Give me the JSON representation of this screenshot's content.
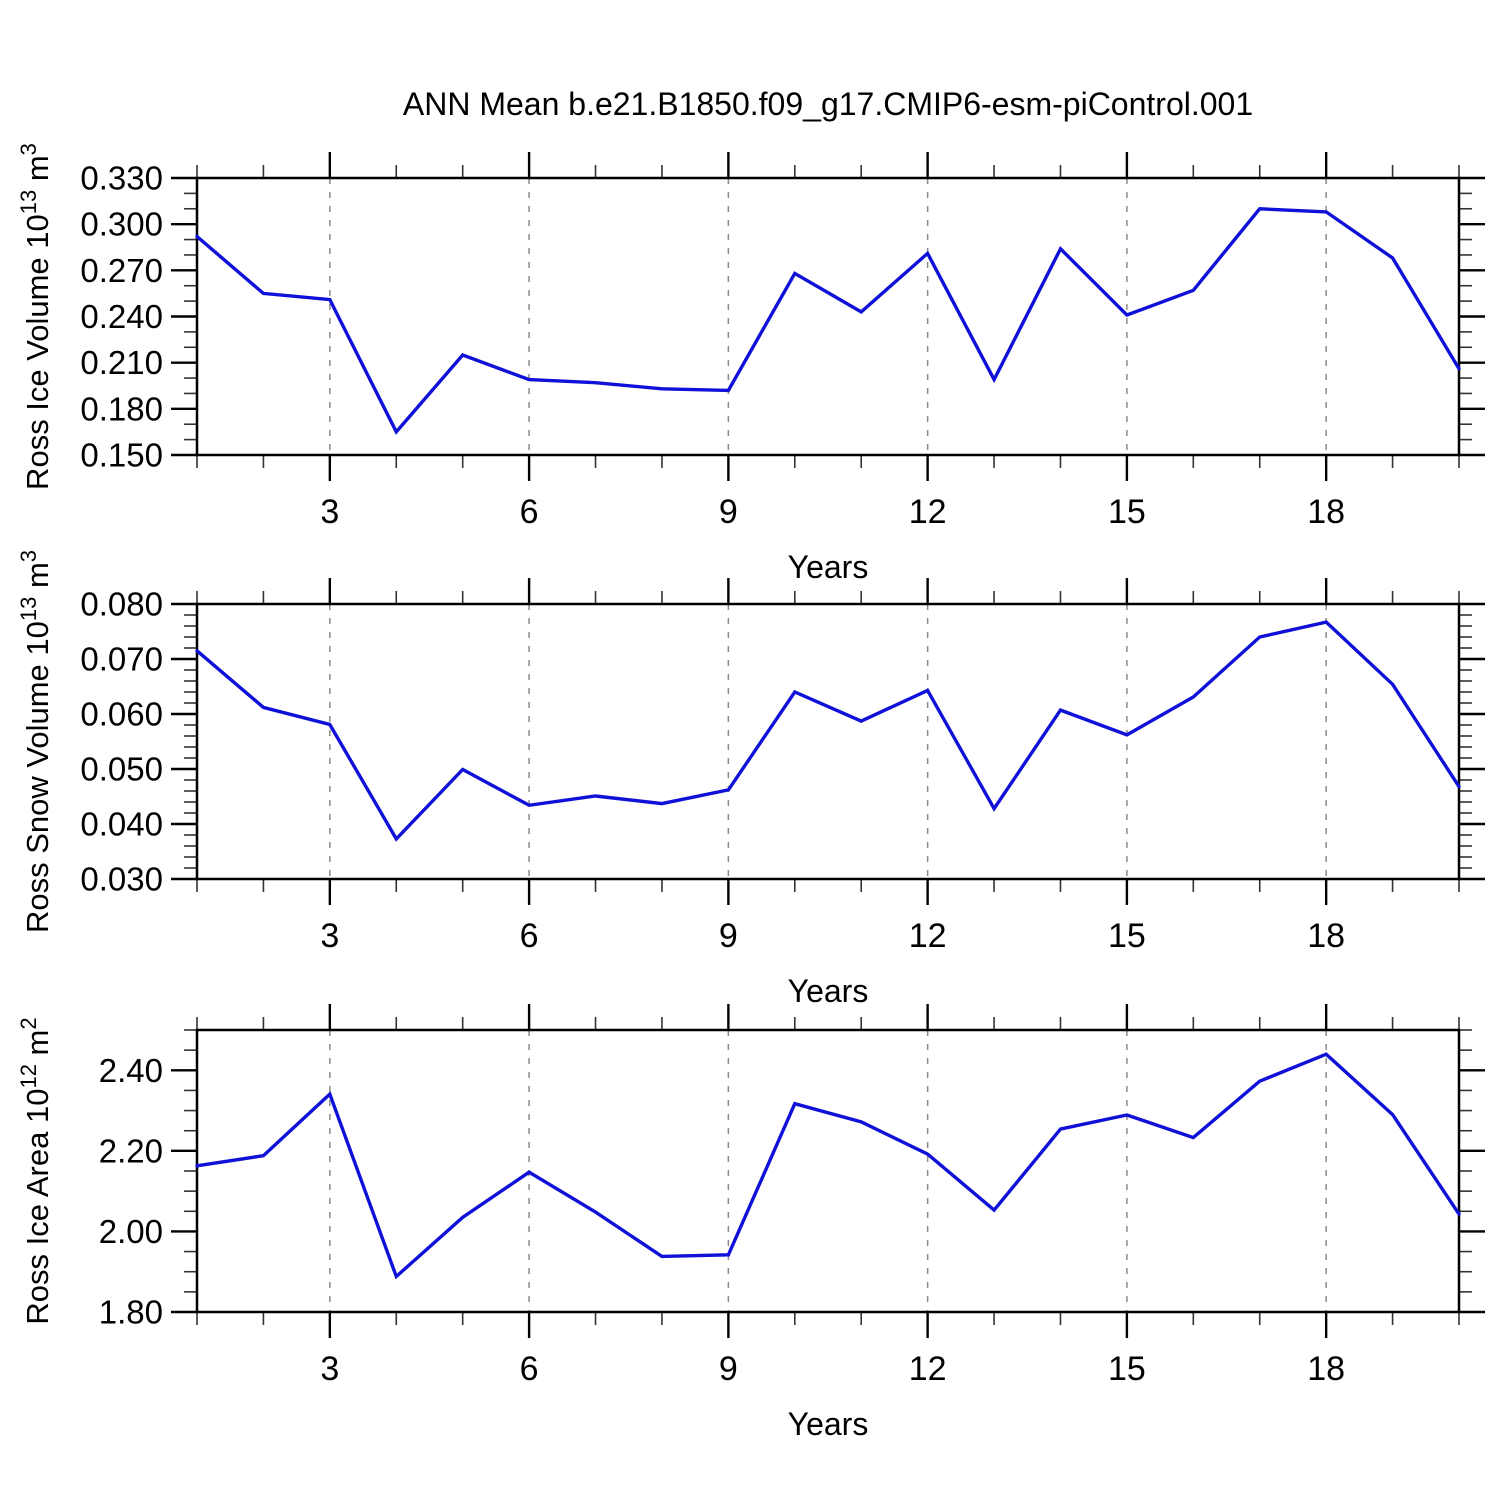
{
  "title": "ANN Mean b.e21.B1850.f09_g17.CMIP6-esm-piControl.001",
  "xlabel": "Years",
  "x_major_tick_labels": [
    "3",
    "6",
    "9",
    "12",
    "15",
    "18"
  ],
  "x_major_ticks": [
    3,
    6,
    9,
    12,
    15,
    18
  ],
  "line_color": "#0f10d8",
  "grid_color": "#8a8a8a",
  "axis_color": "#000000",
  "chart_data": [
    {
      "type": "line",
      "name": "ross-ice-volume",
      "ylabel_plain": "Ross Ice Volume 10^13 m^3",
      "ylabel_parts": [
        {
          "t": "Ross Ice Volume 10"
        },
        {
          "t": "13",
          "sup": true
        },
        {
          "t": " m"
        },
        {
          "t": "3",
          "sup": true
        }
      ],
      "xlabel": "Years",
      "x": [
        1,
        2,
        3,
        4,
        5,
        6,
        7,
        8,
        9,
        10,
        11,
        12,
        13,
        14,
        15,
        16,
        17,
        18,
        19,
        20
      ],
      "values": [
        0.292,
        0.255,
        0.251,
        0.165,
        0.215,
        0.199,
        0.197,
        0.193,
        0.192,
        0.268,
        0.243,
        0.281,
        0.199,
        0.284,
        0.241,
        0.257,
        0.31,
        0.308,
        0.278,
        0.206
      ],
      "ylim": [
        0.15,
        0.33
      ],
      "ytick_values": [
        0.15,
        0.18,
        0.21,
        0.24,
        0.27,
        0.3,
        0.33
      ],
      "ytick_labels": [
        "0.150",
        "0.180",
        "0.210",
        "0.240",
        "0.270",
        "0.300",
        "0.330"
      ],
      "y_minor_step": 0.01,
      "grid": true
    },
    {
      "type": "line",
      "name": "ross-snow-volume",
      "ylabel_plain": "Ross Snow Volume 10^13 m^3",
      "ylabel_parts": [
        {
          "t": "Ross Snow Volume 10"
        },
        {
          "t": "13",
          "sup": true
        },
        {
          "t": " m"
        },
        {
          "t": "3",
          "sup": true
        }
      ],
      "xlabel": "Years",
      "x": [
        1,
        2,
        3,
        4,
        5,
        6,
        7,
        8,
        9,
        10,
        11,
        12,
        13,
        14,
        15,
        16,
        17,
        18,
        19,
        20
      ],
      "values": [
        0.0715,
        0.0612,
        0.0581,
        0.0373,
        0.0499,
        0.0434,
        0.0451,
        0.0437,
        0.0462,
        0.064,
        0.0587,
        0.0643,
        0.0428,
        0.0607,
        0.0562,
        0.0631,
        0.074,
        0.0767,
        0.0654,
        0.0468
      ],
      "ylim": [
        0.03,
        0.08
      ],
      "ytick_values": [
        0.03,
        0.04,
        0.05,
        0.06,
        0.07,
        0.08
      ],
      "ytick_labels": [
        "0.030",
        "0.040",
        "0.050",
        "0.060",
        "0.070",
        "0.080"
      ],
      "y_minor_step": 0.002,
      "grid": true
    },
    {
      "type": "line",
      "name": "ross-ice-area",
      "ylabel_plain": "Ross Ice Area 10^12 m^2",
      "ylabel_parts": [
        {
          "t": "Ross Ice Area 10"
        },
        {
          "t": "12",
          "sup": true
        },
        {
          "t": " m"
        },
        {
          "t": "2",
          "sup": true
        }
      ],
      "xlabel": "Years",
      "x": [
        1,
        2,
        3,
        4,
        5,
        6,
        7,
        8,
        9,
        10,
        11,
        12,
        13,
        14,
        15,
        16,
        17,
        18,
        19,
        20
      ],
      "values": [
        2.163,
        2.188,
        2.341,
        1.888,
        2.035,
        2.147,
        2.048,
        1.938,
        1.942,
        2.317,
        2.272,
        2.192,
        2.053,
        2.254,
        2.289,
        2.233,
        2.373,
        2.44,
        2.29,
        2.043
      ],
      "ylim": [
        1.8,
        2.5
      ],
      "ytick_values": [
        1.8,
        2.0,
        2.2,
        2.4
      ],
      "ytick_labels": [
        "1.80",
        "2.00",
        "2.20",
        "2.40"
      ],
      "y_minor_step": 0.05,
      "grid": true
    }
  ]
}
